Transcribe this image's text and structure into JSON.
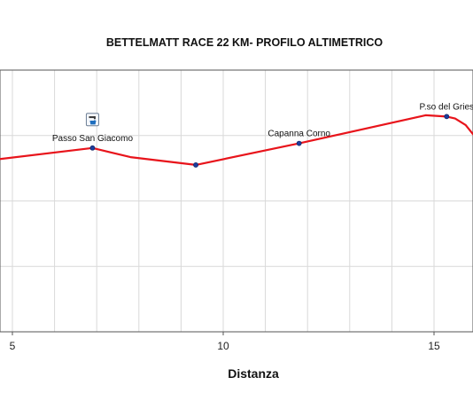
{
  "chart_data": {
    "type": "line",
    "title": "BETTELMATT RACE 22 KM- PROFILO ALTIMETRICO",
    "xlabel": "Distanza",
    "ylabel": "",
    "grid": true,
    "xlim": [
      4.7,
      16.0
    ],
    "ylim": [
      2100,
      2650
    ],
    "x_ticks": [
      5,
      10,
      15
    ],
    "y_gridlines": [
      2200,
      2300,
      2400,
      2500,
      2600
    ],
    "series": [
      {
        "color": "#e8141b",
        "x": [
          4.7,
          6.9,
          7.8,
          9.35,
          11.8,
          14.8,
          15.3,
          15.5,
          15.75,
          16.0
        ],
        "y": [
          2464,
          2481,
          2467,
          2455,
          2488,
          2531,
          2529,
          2526,
          2516,
          2496
        ]
      }
    ],
    "annotations": [
      {
        "x": 6.9,
        "y": 2481,
        "label": "Passo San Giacomo",
        "icon": "water-station-icon"
      },
      {
        "x": 9.35,
        "y": 2455,
        "label": ""
      },
      {
        "x": 11.8,
        "y": 2488,
        "label": "Capanna Corno"
      },
      {
        "x": 15.3,
        "y": 2529,
        "label": "P.so del Gries"
      }
    ],
    "colors": {
      "line": "#e8141b",
      "marker_fill": "#1c3d9c",
      "grid": "#d9d9d9",
      "axis": "#555555"
    }
  }
}
